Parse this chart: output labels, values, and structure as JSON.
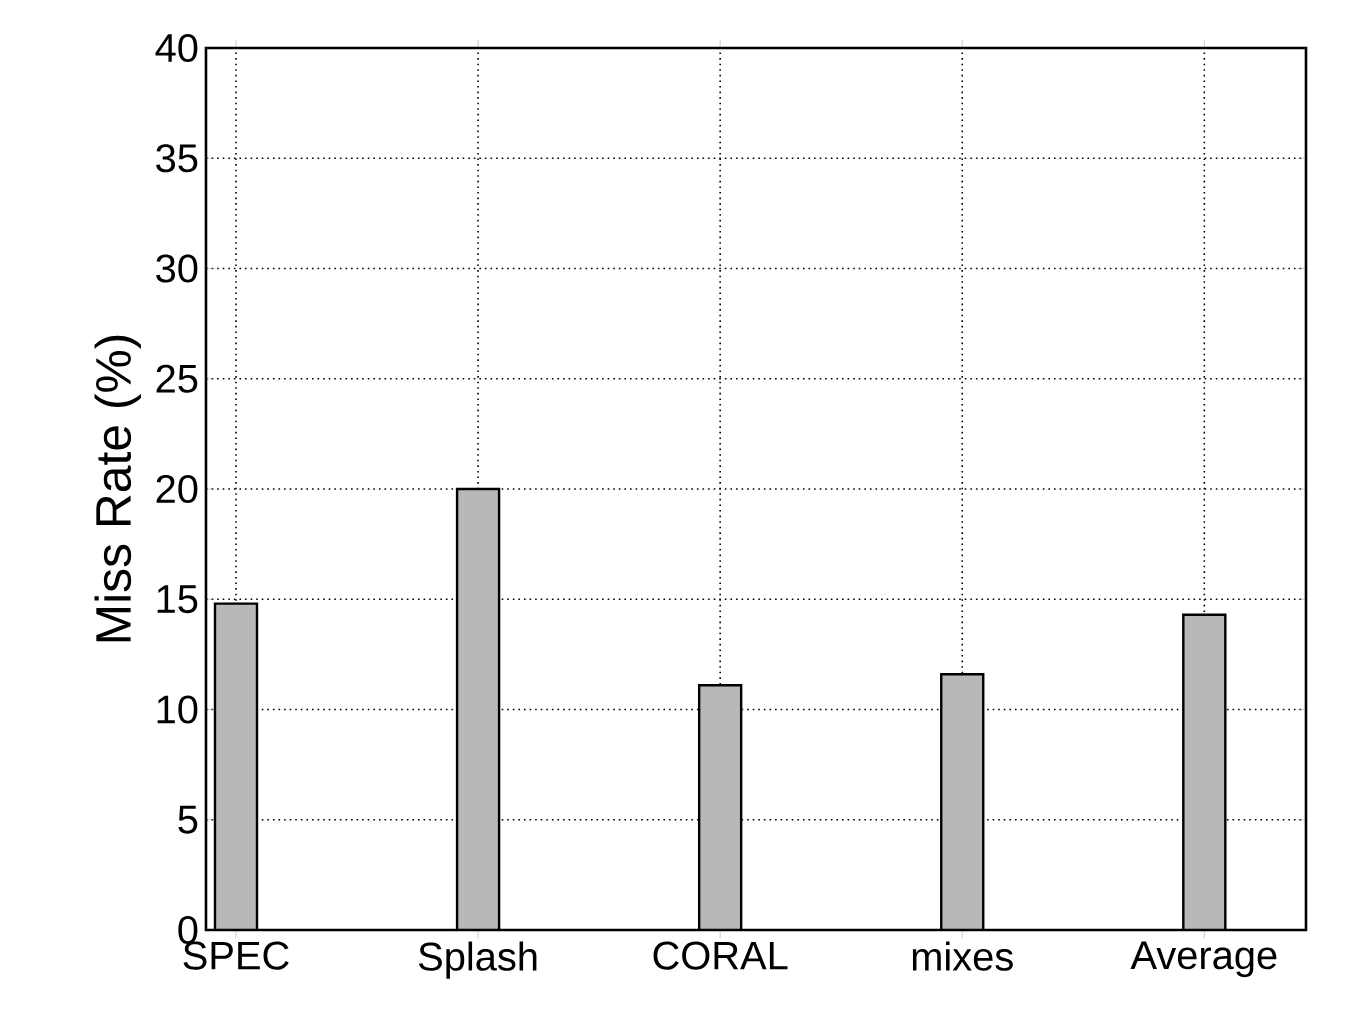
{
  "chart_data": {
    "type": "bar",
    "ylabel": "Miss Rate (%)",
    "categories": [
      "SPEC",
      "Splash",
      "CORAL",
      "mixes",
      "Average"
    ],
    "values": [
      14.8,
      20.0,
      11.1,
      11.6,
      14.3
    ],
    "color": "#b8b8b8",
    "ylim": [
      0,
      40
    ],
    "yticks": [
      0,
      5,
      10,
      15,
      20,
      25,
      30,
      35,
      40
    ],
    "grid": true
  }
}
